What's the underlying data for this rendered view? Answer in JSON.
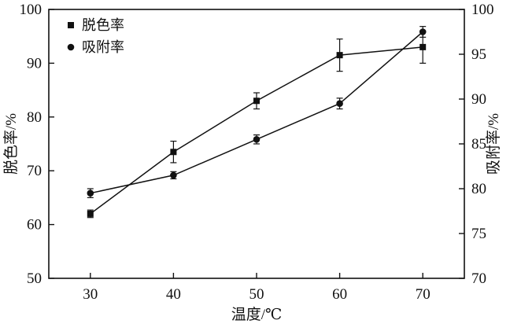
{
  "chart_data": {
    "type": "line",
    "title": "",
    "xlabel": "温度/℃",
    "ylabel_left": "脱色率/%",
    "ylabel_right": "吸附率/%",
    "xlim": [
      25,
      75
    ],
    "xticks": [
      30,
      40,
      50,
      60,
      70
    ],
    "ylim_left": [
      50,
      100
    ],
    "yticks_left": [
      50,
      60,
      70,
      80,
      90,
      100
    ],
    "ylim_right": [
      70,
      100
    ],
    "yticks_right": [
      70,
      75,
      80,
      85,
      90,
      95,
      100
    ],
    "x": [
      30,
      40,
      50,
      60,
      70
    ],
    "series": [
      {
        "name": "脱色率",
        "axis": "left",
        "marker": "square",
        "values": [
          62,
          73.5,
          83,
          91.5,
          93
        ],
        "errors": [
          0.7,
          2,
          1.5,
          3,
          3
        ]
      },
      {
        "name": "吸附率",
        "axis": "right",
        "marker": "circle",
        "values": [
          79.5,
          81.5,
          85.5,
          89.5,
          97.5
        ],
        "errors": [
          0.5,
          0.4,
          0.5,
          0.6,
          0.6
        ]
      }
    ],
    "legend": {
      "position": "top-left",
      "items": [
        "脱色率",
        "吸附率"
      ]
    },
    "grid": false,
    "line_color": "#111111",
    "background": "#ffffff"
  }
}
